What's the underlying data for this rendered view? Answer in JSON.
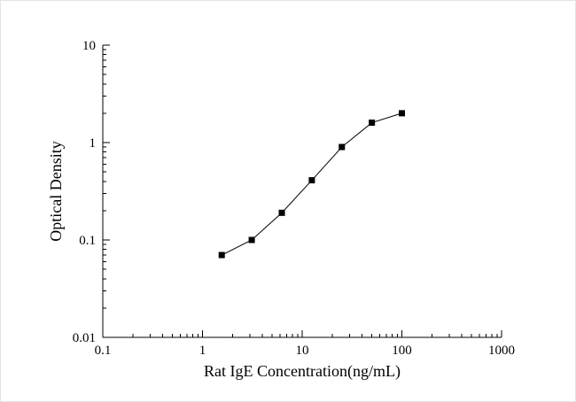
{
  "chart_data": {
    "type": "scatter",
    "title": "",
    "xlabel": "Rat IgE Concentration(ng/mL)",
    "ylabel": "Optical Density",
    "x_scale": "log",
    "y_scale": "log",
    "xlim": [
      0.1,
      1000
    ],
    "ylim": [
      0.01,
      10
    ],
    "grid": "off",
    "legend": "none",
    "x": [
      1.56,
      3.12,
      6.25,
      12.5,
      25,
      50,
      100
    ],
    "y": [
      0.07,
      0.1,
      0.19,
      0.41,
      0.9,
      1.6,
      2.0
    ],
    "x_tick_values": [
      0.1,
      1,
      10,
      100,
      1000
    ],
    "x_tick_labels": [
      "0.1",
      "1",
      "10",
      "100",
      "1000"
    ],
    "y_tick_values": [
      0.01,
      0.1,
      1,
      10
    ],
    "y_tick_labels": [
      "0.01",
      "0.1",
      "1",
      "10"
    ],
    "marker": "filled-square",
    "marker_color": "#000000",
    "line_color": "#000000",
    "axis_color": "#000000"
  }
}
